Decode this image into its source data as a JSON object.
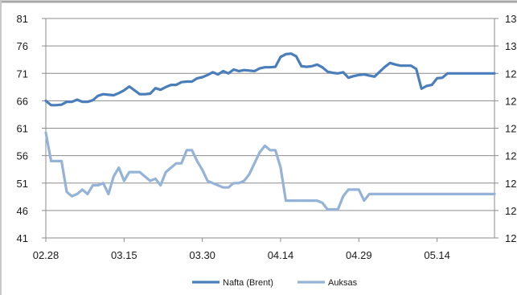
{
  "colors": {
    "background": "#ffffff",
    "grid": "#8c8c8c",
    "border": "#a6a6a6",
    "text": "#1a1a1a"
  },
  "chart_data": {
    "type": "line",
    "title": "",
    "xlabel": "",
    "ylabel": "",
    "grid": true,
    "legend_position": "bottom",
    "x_tick_labels": [
      "02.28",
      "03.15",
      "03.30",
      "04.14",
      "04.29",
      "05.14"
    ],
    "x_tick_indices": [
      0,
      15,
      30,
      45,
      60,
      75
    ],
    "y_left": {
      "ticks": [
        41,
        46,
        51,
        56,
        61,
        66,
        71,
        76,
        81
      ],
      "ylim": [
        41,
        81
      ]
    },
    "y_right": {
      "tick_labels": [
        "12",
        "12",
        "12",
        "12",
        "12",
        "12",
        "12",
        "13",
        "13"
      ],
      "visible_prefix_note": "right axis labels are clipped at the image edge",
      "ylim": [
        0,
        100
      ]
    },
    "x_count": 87,
    "series": [
      {
        "name": "Nafta (Brent)",
        "axis": "left",
        "color": "#4a7ebb",
        "values": [
          66.0,
          65.2,
          65.2,
          65.3,
          65.8,
          65.8,
          66.2,
          65.8,
          65.8,
          66.1,
          66.9,
          67.2,
          67.1,
          67.0,
          67.4,
          67.9,
          68.6,
          67.9,
          67.2,
          67.2,
          67.3,
          68.3,
          68.0,
          68.5,
          68.9,
          68.9,
          69.4,
          69.5,
          69.5,
          70.1,
          70.3,
          70.7,
          71.2,
          70.8,
          71.4,
          71.0,
          71.7,
          71.4,
          71.6,
          71.5,
          71.4,
          71.9,
          72.1,
          72.1,
          72.2,
          74.0,
          74.5,
          74.6,
          74.1,
          72.3,
          72.2,
          72.3,
          72.6,
          72.1,
          71.3,
          71.1,
          71.0,
          71.2,
          70.2,
          70.5,
          70.7,
          70.8,
          70.6,
          70.4,
          71.3,
          72.2,
          72.9,
          72.6,
          72.4,
          72.4,
          72.4,
          71.8,
          68.2,
          68.7,
          68.9,
          70.1,
          70.2,
          71.0,
          71.0,
          71.0,
          71.0,
          71.0,
          71.0,
          71.0,
          71.0,
          71.0,
          71.0
        ]
      },
      {
        "name": "Auksas",
        "axis": "right",
        "color": "#95b3d7",
        "values": [
          48,
          35,
          35,
          35,
          21,
          19,
          20,
          22,
          20,
          24,
          24,
          25,
          20,
          28,
          32,
          26,
          30,
          30,
          30,
          28,
          26,
          27,
          24,
          30,
          32,
          34,
          34,
          40,
          40,
          35,
          31,
          26,
          25,
          24,
          23,
          23,
          25,
          25,
          26,
          29,
          34,
          39,
          42,
          40,
          40,
          32,
          17,
          17,
          17,
          17,
          17,
          17,
          17,
          16,
          13,
          13,
          13,
          19,
          22,
          22,
          22,
          17,
          20,
          20,
          20,
          20,
          20,
          20,
          20,
          20,
          20,
          20,
          20,
          20,
          20,
          20,
          20,
          20,
          20,
          20,
          20,
          20,
          20,
          20,
          20,
          20,
          20
        ]
      }
    ]
  },
  "legend": [
    {
      "label": "Nafta (Brent)",
      "color": "#4a7ebb"
    },
    {
      "label": "Auksas",
      "color": "#95b3d7"
    }
  ]
}
